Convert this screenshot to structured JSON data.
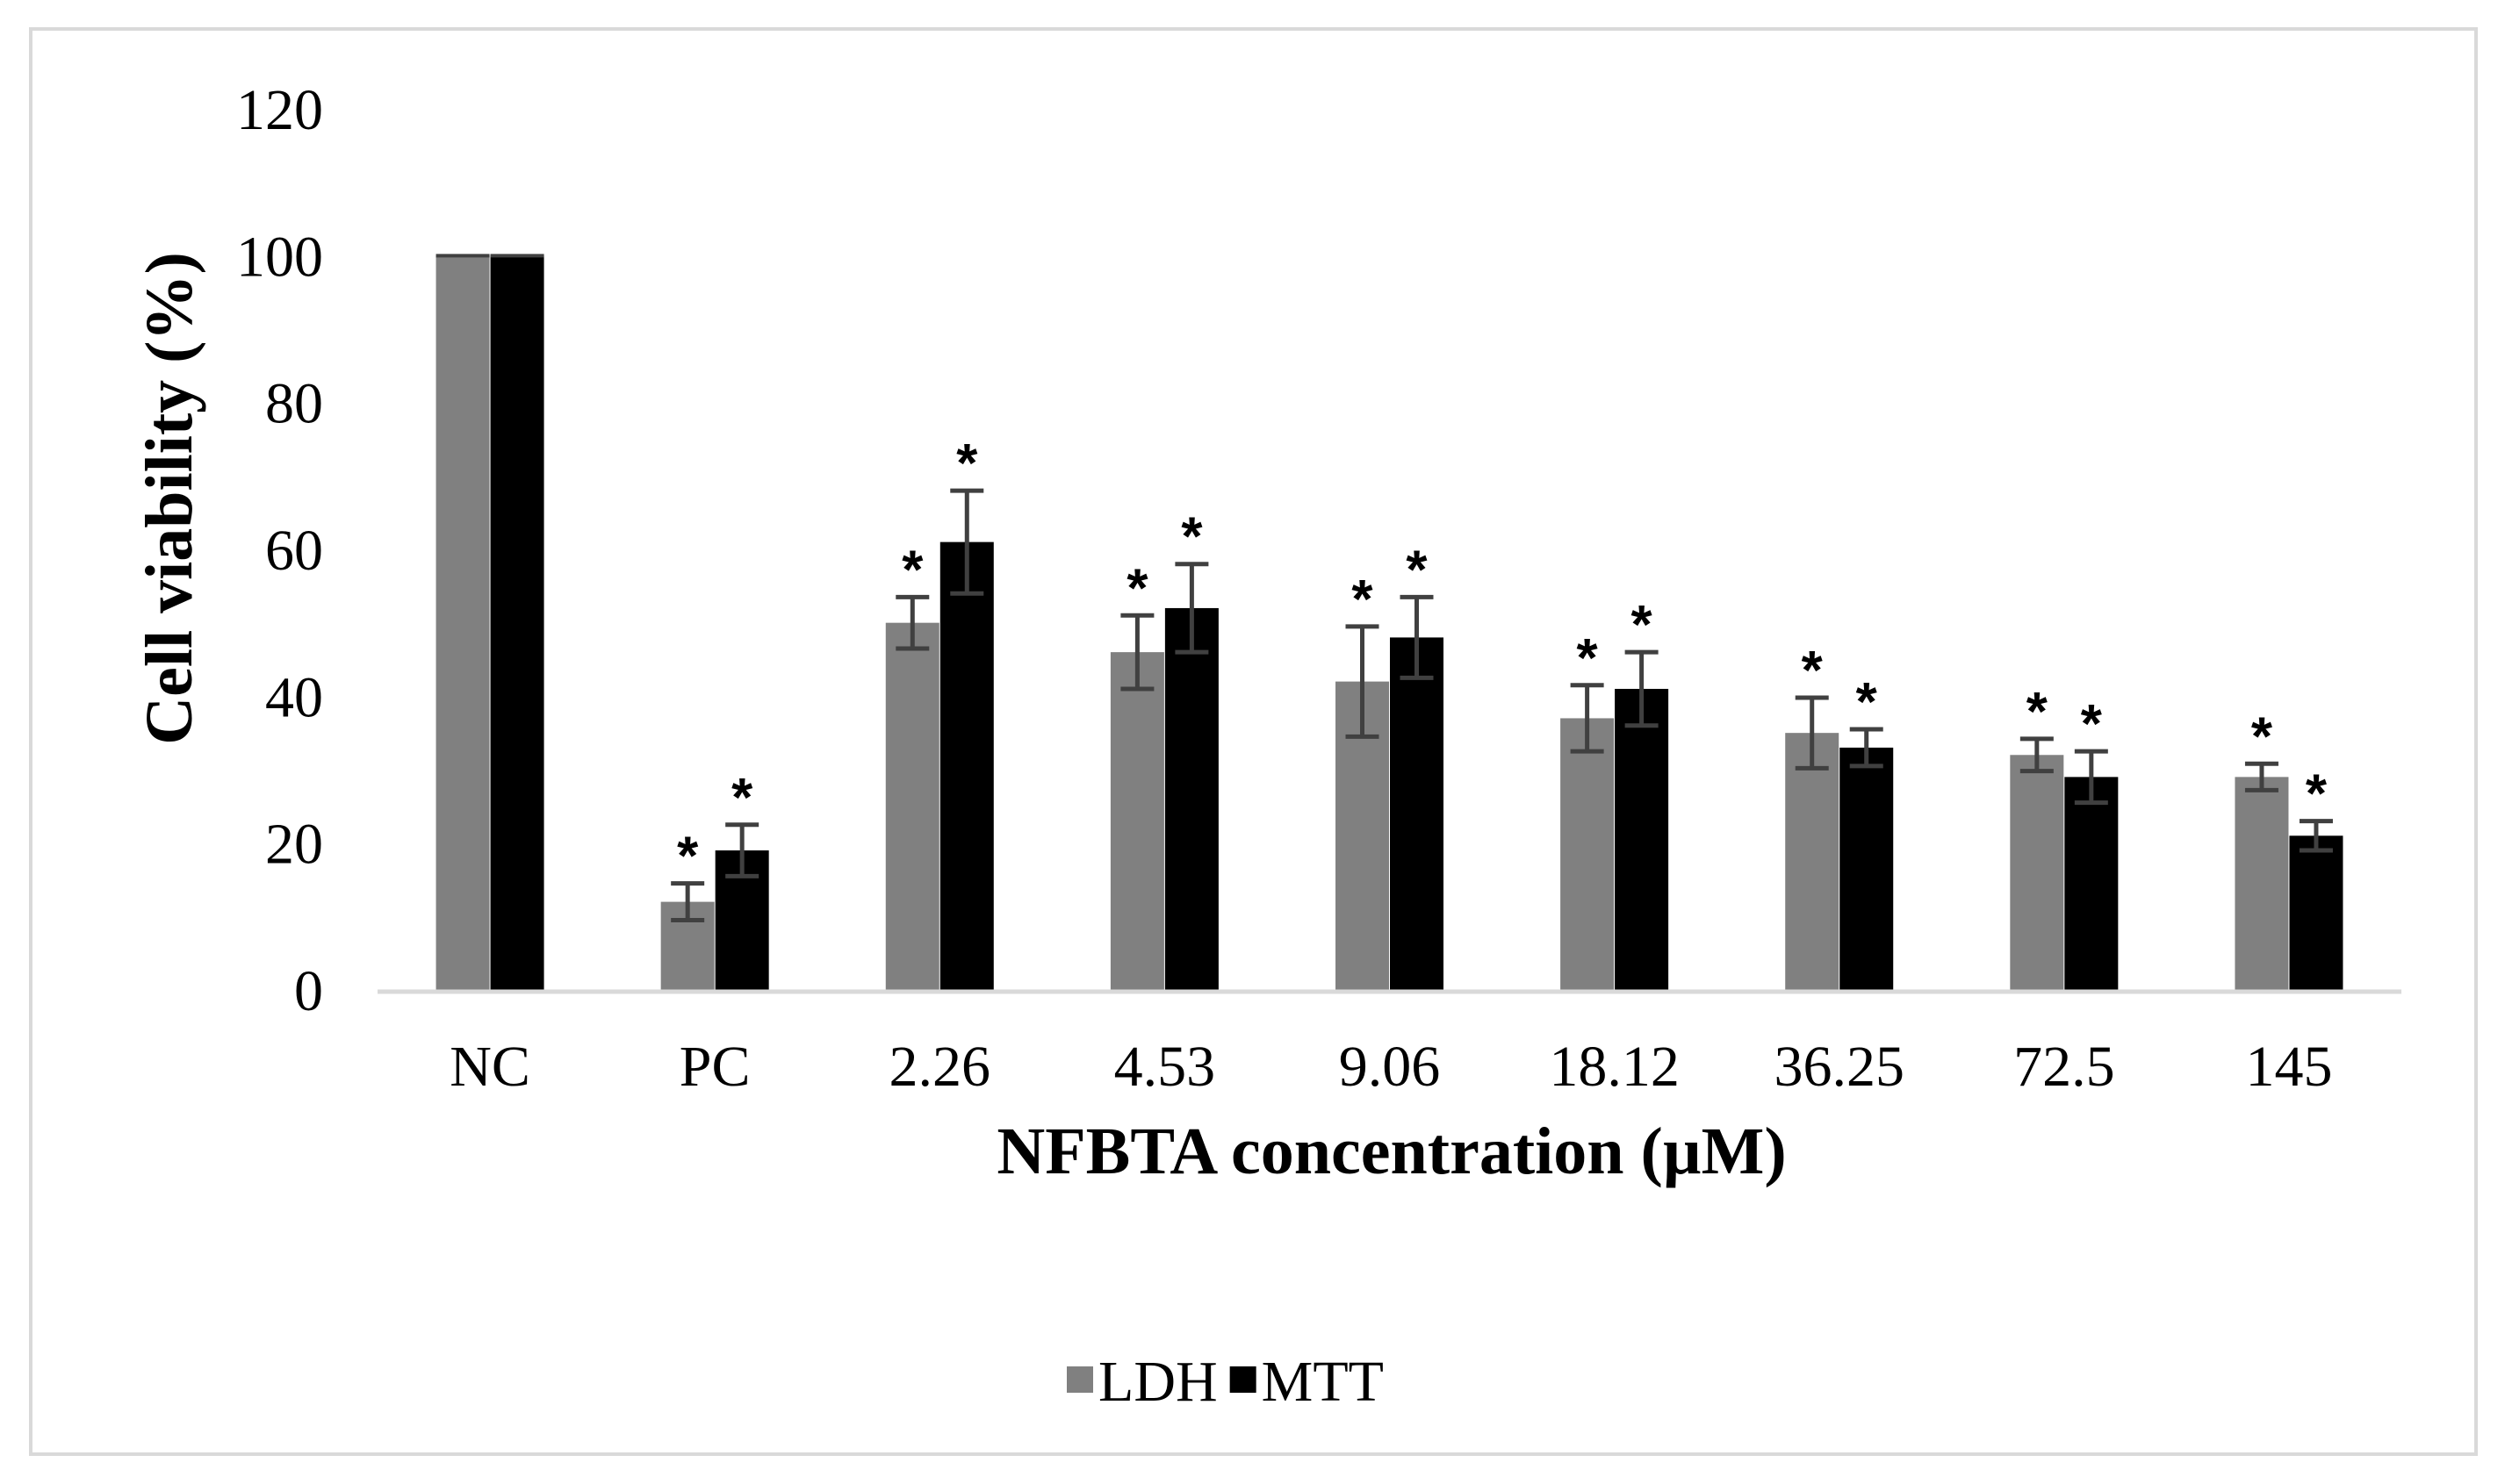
{
  "chart_data": {
    "type": "bar",
    "title": "",
    "xlabel": "NFBTA concentration (µM)",
    "ylabel": "Cell viability (%)",
    "ylim": [
      0,
      120
    ],
    "yticks": [
      0,
      20,
      40,
      60,
      80,
      100,
      120
    ],
    "grid": false,
    "legend_position": "bottom-center",
    "categories": [
      "NC",
      "PC",
      "2.26",
      "4.53",
      "9.06",
      "18.12",
      "36.25",
      "72.5",
      "145"
    ],
    "series": [
      {
        "name": "LDH",
        "color": "#808080",
        "values": [
          100,
          12,
          50,
          46,
          42,
          37,
          35,
          32,
          29
        ],
        "errors": [
          0,
          2.5,
          3.5,
          5,
          7.5,
          4.5,
          4.8,
          2.2,
          1.8
        ],
        "significant": [
          false,
          true,
          true,
          true,
          true,
          true,
          true,
          true,
          true
        ]
      },
      {
        "name": "MTT",
        "color": "#000000",
        "values": [
          100,
          19,
          61,
          52,
          48,
          41,
          33,
          29,
          21
        ],
        "errors": [
          0,
          3.5,
          7,
          6,
          5.5,
          5,
          2.5,
          3.5,
          2
        ],
        "significant": [
          false,
          true,
          true,
          true,
          true,
          true,
          true,
          true,
          true
        ]
      }
    ],
    "significance_symbol": "*",
    "error_bar_color": "#404040",
    "axis_line_color": "#d9d9d9"
  }
}
